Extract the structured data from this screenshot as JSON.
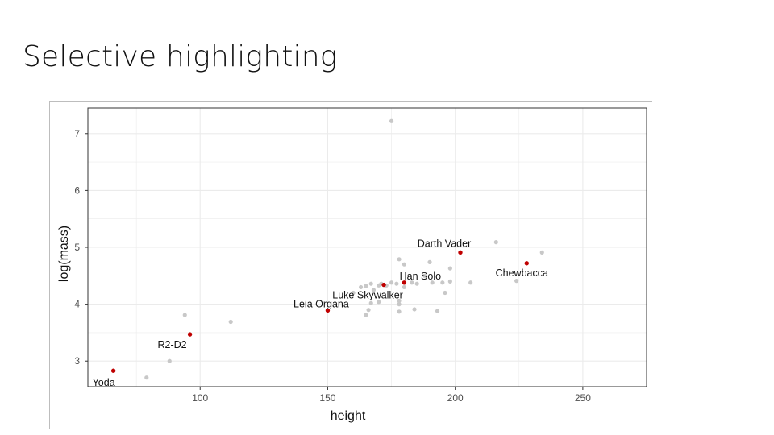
{
  "slide": {
    "title": "Selective highlighting"
  },
  "chart_data": {
    "type": "scatter",
    "title": "",
    "xlabel": "height",
    "ylabel": "log(mass)",
    "xlim": [
      56,
      275
    ],
    "ylim": [
      2.55,
      7.45
    ],
    "xticks": [
      100,
      150,
      200,
      250
    ],
    "yticks": [
      3,
      4,
      5,
      6,
      7
    ],
    "grid": true,
    "legend": "none",
    "colors": {
      "background": "#c8c8c8",
      "highlight": "#c00000",
      "grid": "#ebebeb",
      "panel_border": "#333333"
    },
    "background_points": [
      [
        175,
        7.22
      ],
      [
        79,
        2.71
      ],
      [
        88,
        3.0
      ],
      [
        94,
        3.81
      ],
      [
        112,
        3.69
      ],
      [
        165,
        3.81
      ],
      [
        166,
        3.9
      ],
      [
        167,
        4.02
      ],
      [
        168,
        4.25
      ],
      [
        170,
        4.04
      ],
      [
        170,
        4.33
      ],
      [
        171,
        4.36
      ],
      [
        173,
        4.33
      ],
      [
        175,
        4.38
      ],
      [
        177,
        4.36
      ],
      [
        178,
        3.87
      ],
      [
        178,
        4.0
      ],
      [
        178,
        4.06
      ],
      [
        178,
        4.79
      ],
      [
        180,
        4.3
      ],
      [
        180,
        4.7
      ],
      [
        183,
        4.38
      ],
      [
        184,
        3.91
      ],
      [
        185,
        4.36
      ],
      [
        188,
        4.5
      ],
      [
        190,
        4.74
      ],
      [
        191,
        4.38
      ],
      [
        193,
        3.88
      ],
      [
        195,
        4.38
      ],
      [
        196,
        4.2
      ],
      [
        198,
        4.4
      ],
      [
        198,
        4.63
      ],
      [
        206,
        4.38
      ],
      [
        216,
        5.09
      ],
      [
        224,
        4.41
      ],
      [
        234,
        4.91
      ],
      [
        160,
        4.2
      ],
      [
        163,
        4.3
      ],
      [
        165,
        4.32
      ],
      [
        167,
        4.36
      ],
      [
        96,
        3.47
      ],
      [
        66,
        2.83
      ]
    ],
    "highlighted": [
      {
        "name": "Yoda",
        "x": 66,
        "y": 2.83,
        "label_pos": "below"
      },
      {
        "name": "R2-D2",
        "x": 96,
        "y": 3.47,
        "label_pos": "below-left"
      },
      {
        "name": "Leia Organa",
        "x": 150,
        "y": 3.89,
        "label_pos": "above"
      },
      {
        "name": "Luke Skywalker",
        "x": 172,
        "y": 4.34,
        "label_pos": "below"
      },
      {
        "name": "Han Solo",
        "x": 180,
        "y": 4.38,
        "label_pos": "above-right"
      },
      {
        "name": "Darth Vader",
        "x": 202,
        "y": 4.91,
        "label_pos": "above-left"
      },
      {
        "name": "Chewbacca",
        "x": 228,
        "y": 4.72,
        "label_pos": "below"
      }
    ]
  }
}
